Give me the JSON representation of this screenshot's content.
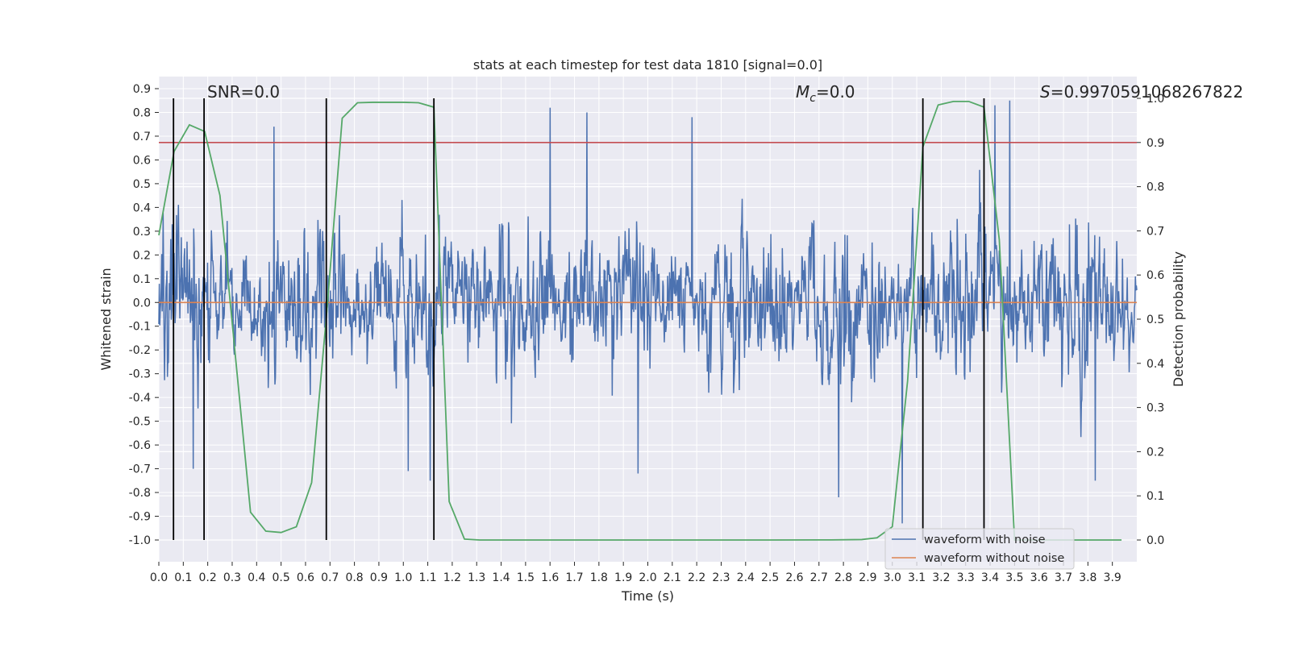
{
  "chart_data": {
    "type": "line",
    "title": "stats at each timestep for test data 1810 [signal=0.0]",
    "xlabel": "Time (s)",
    "ylabel_left": "Whitened strain",
    "ylabel_right": "Detection probability",
    "xlim": [
      0.0,
      4.0
    ],
    "ylim_left": [
      -1.0,
      0.9
    ],
    "ylim_right": [
      0.0,
      1.0
    ],
    "x_ticks": [
      "0.0",
      "0.1",
      "0.2",
      "0.3",
      "0.4",
      "0.5",
      "0.6",
      "0.7",
      "0.8",
      "0.9",
      "1.0",
      "1.1",
      "1.2",
      "1.3",
      "1.4",
      "1.5",
      "1.6",
      "1.7",
      "1.8",
      "1.9",
      "2.0",
      "2.1",
      "2.2",
      "2.3",
      "2.4",
      "2.5",
      "2.6",
      "2.7",
      "2.8",
      "2.9",
      "3.0",
      "3.1",
      "3.2",
      "3.3",
      "3.4",
      "3.5",
      "3.6",
      "3.7",
      "3.8",
      "3.9"
    ],
    "y_ticks_left": [
      "0.9",
      "0.8",
      "0.7",
      "0.6",
      "0.5",
      "0.4",
      "0.3",
      "0.2",
      "0.1",
      "0.0",
      "-0.1",
      "-0.2",
      "-0.3",
      "-0.4",
      "-0.5",
      "-0.6",
      "-0.7",
      "-0.8",
      "-0.9",
      "-1.0"
    ],
    "y_ticks_right": [
      "1.0",
      "0.9",
      "0.8",
      "0.7",
      "0.6",
      "0.5",
      "0.4",
      "0.3",
      "0.2",
      "0.1",
      "0.0"
    ],
    "annotations": {
      "snr": "SNR=0.0",
      "mc": "=0.0",
      "mc_symbol": "M",
      "mc_subscript": "c",
      "s": "=0.9970591068267822",
      "s_symbol": "S"
    },
    "threshold": {
      "name": "detection threshold",
      "value": 0.9,
      "color": "#c44e52"
    },
    "vertical_lines": [
      0.06,
      0.185,
      0.685,
      1.125,
      3.125,
      3.375
    ],
    "series": [
      {
        "name": "waveform with noise",
        "color": "#4c72b0",
        "axis": "left",
        "kind": "noise",
        "amplitude_sd": 0.22,
        "peaks": [
          {
            "t": 0.47,
            "y": 0.74
          },
          {
            "t": 1.6,
            "y": 0.82
          },
          {
            "t": 1.75,
            "y": 0.8
          },
          {
            "t": 2.18,
            "y": 0.78
          },
          {
            "t": 3.42,
            "y": 0.83
          },
          {
            "t": 3.48,
            "y": 0.85
          },
          {
            "t": 0.14,
            "y": -0.7
          },
          {
            "t": 1.02,
            "y": -0.71
          },
          {
            "t": 1.11,
            "y": -0.75
          },
          {
            "t": 1.96,
            "y": -0.72
          },
          {
            "t": 2.78,
            "y": -0.82
          },
          {
            "t": 3.04,
            "y": -0.93
          },
          {
            "t": 3.83,
            "y": -0.75
          }
        ]
      },
      {
        "name": "waveform without noise",
        "color": "#dd8452",
        "axis": "left",
        "x": [
          0.0,
          4.0
        ],
        "y": [
          0.0,
          0.0
        ]
      },
      {
        "name": "detection probability",
        "color": "#55a868",
        "axis": "right",
        "x": [
          0.0,
          0.0625,
          0.125,
          0.1875,
          0.25,
          0.3125,
          0.375,
          0.4375,
          0.5,
          0.5625,
          0.625,
          0.6875,
          0.75,
          0.8125,
          0.875,
          0.9375,
          1.0,
          1.0625,
          1.125,
          1.1875,
          1.25,
          1.3125,
          1.5,
          2.0,
          2.5,
          2.75,
          2.875,
          2.9375,
          3.0,
          3.0625,
          3.125,
          3.1875,
          3.25,
          3.3125,
          3.375,
          3.4375,
          3.5,
          3.5625,
          3.625,
          3.75,
          3.875,
          3.9375
        ],
        "y": [
          0.69,
          0.88,
          0.94,
          0.925,
          0.78,
          0.42,
          0.063,
          0.02,
          0.017,
          0.03,
          0.13,
          0.52,
          0.955,
          0.99,
          0.991,
          0.991,
          0.991,
          0.99,
          0.98,
          0.087,
          0.002,
          0.0,
          0.0,
          0.0,
          0.0,
          0.0003,
          0.001,
          0.005,
          0.03,
          0.36,
          0.89,
          0.985,
          0.993,
          0.993,
          0.98,
          0.68,
          0.0,
          0.0,
          0.0,
          0.0,
          0.0,
          0.0
        ]
      }
    ],
    "legend": {
      "position": "lower-right",
      "entries": [
        {
          "label": "waveform with noise",
          "color": "#4c72b0"
        },
        {
          "label": "waveform without noise",
          "color": "#dd8452"
        }
      ]
    },
    "grid": true,
    "style": {
      "plot_background": "#eaeaf2",
      "grid_color": "#ffffff",
      "vline_color": "#000000"
    }
  }
}
